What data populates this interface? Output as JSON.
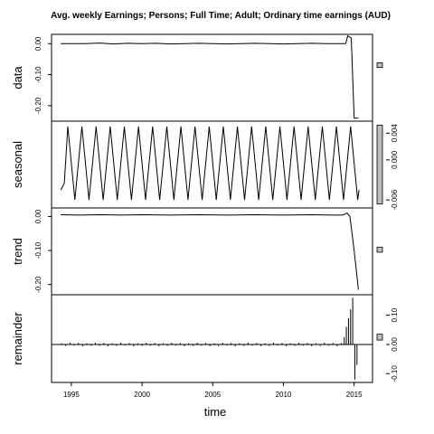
{
  "chart_data": {
    "type": "line",
    "title": "Avg. weekly Earnings; Persons; Full Time; Adult; Ordinary time earnings (AUD)",
    "xlabel": "time",
    "x_ticks": [
      1995,
      2000,
      2005,
      2010,
      2015
    ],
    "x_range": [
      1993.6,
      2016.3
    ],
    "colors": {
      "line": "#000000",
      "range_bar": "#bfbfbf"
    },
    "panels": [
      {
        "name": "data",
        "ylabel": "data",
        "ylim": [
          -0.25,
          0.03
        ],
        "y_ticks": [
          0.0,
          -0.1,
          -0.2
        ],
        "y_tick_labels": [
          "0.00",
          "-0.10",
          "-0.20"
        ],
        "tick_side": "left",
        "range_bar": [
          -0.077,
          -0.062
        ]
      },
      {
        "name": "seasonal",
        "ylabel": "seasonal",
        "ylim": [
          -0.0072,
          0.0058
        ],
        "y_ticks": [
          0.004,
          0.0,
          -0.006
        ],
        "y_tick_labels": [
          "0.004",
          "0.000",
          "-0.006"
        ],
        "tick_side": "right",
        "range_bar": [
          -0.0066,
          0.0052
        ]
      },
      {
        "name": "trend",
        "ylabel": "trend",
        "ylim": [
          -0.23,
          0.025
        ],
        "y_ticks": [
          0.0,
          -0.1,
          -0.2
        ],
        "y_tick_labels": [
          "0.00",
          "-0.10",
          "-0.20"
        ],
        "tick_side": "left",
        "range_bar": [
          -0.105,
          -0.09
        ]
      },
      {
        "name": "remainder",
        "ylabel": "remainder",
        "ylim": [
          -0.13,
          0.17
        ],
        "y_ticks": [
          0.1,
          0.0,
          -0.1
        ],
        "y_tick_labels": [
          "0.10",
          "0.00",
          "-0.10"
        ],
        "tick_side": "right",
        "range_bar": [
          0.015,
          0.035
        ],
        "style": "bars"
      }
    ],
    "series": {
      "data": [
        [
          1994.25,
          0.0
        ],
        [
          1995.0,
          0.0
        ],
        [
          1996.0,
          0.0
        ],
        [
          1997.0,
          0.002
        ],
        [
          1998.0,
          -0.001
        ],
        [
          1999.0,
          0.001
        ],
        [
          2000.0,
          0.0
        ],
        [
          2001.0,
          0.001
        ],
        [
          2002.0,
          -0.001
        ],
        [
          2003.0,
          0.0
        ],
        [
          2004.0,
          0.001
        ],
        [
          2005.0,
          0.0
        ],
        [
          2006.0,
          -0.001
        ],
        [
          2007.0,
          0.0
        ],
        [
          2008.0,
          0.001
        ],
        [
          2009.0,
          0.0
        ],
        [
          2010.0,
          -0.001
        ],
        [
          2011.0,
          0.0
        ],
        [
          2012.0,
          0.001
        ],
        [
          2013.0,
          0.0
        ],
        [
          2014.0,
          0.0
        ],
        [
          2014.4,
          0.0
        ],
        [
          2014.55,
          0.025
        ],
        [
          2014.8,
          0.018
        ],
        [
          2015.0,
          -0.24
        ],
        [
          2015.3,
          -0.24
        ]
      ],
      "seasonal": [
        [
          1994.25,
          -0.0045
        ],
        [
          1994.5,
          -0.0035
        ],
        [
          1994.75,
          0.005
        ],
        [
          1995.25,
          -0.006
        ],
        [
          1995.75,
          0.005
        ],
        [
          1996.25,
          -0.006
        ],
        [
          1996.75,
          0.005
        ],
        [
          1997.25,
          -0.006
        ],
        [
          1997.75,
          0.005
        ],
        [
          1998.25,
          -0.006
        ],
        [
          1998.75,
          0.005
        ],
        [
          1999.25,
          -0.006
        ],
        [
          1999.75,
          0.005
        ],
        [
          2000.25,
          -0.006
        ],
        [
          2000.75,
          0.005
        ],
        [
          2001.25,
          -0.006
        ],
        [
          2001.75,
          0.005
        ],
        [
          2002.25,
          -0.006
        ],
        [
          2002.75,
          0.005
        ],
        [
          2003.25,
          -0.006
        ],
        [
          2003.75,
          0.005
        ],
        [
          2004.25,
          -0.006
        ],
        [
          2004.75,
          0.005
        ],
        [
          2005.25,
          -0.006
        ],
        [
          2005.75,
          0.005
        ],
        [
          2006.25,
          -0.006
        ],
        [
          2006.75,
          0.005
        ],
        [
          2007.25,
          -0.006
        ],
        [
          2007.75,
          0.005
        ],
        [
          2008.25,
          -0.006
        ],
        [
          2008.75,
          0.005
        ],
        [
          2009.25,
          -0.006
        ],
        [
          2009.75,
          0.005
        ],
        [
          2010.25,
          -0.006
        ],
        [
          2010.75,
          0.005
        ],
        [
          2011.25,
          -0.006
        ],
        [
          2011.75,
          0.005
        ],
        [
          2012.25,
          -0.006
        ],
        [
          2012.75,
          0.005
        ],
        [
          2013.25,
          -0.006
        ],
        [
          2013.75,
          0.005
        ],
        [
          2014.25,
          -0.006
        ],
        [
          2014.75,
          0.005
        ],
        [
          2015.25,
          -0.006
        ],
        [
          2015.35,
          -0.0045
        ]
      ],
      "trend": [
        [
          1994.25,
          0.005
        ],
        [
          1995.5,
          0.004
        ],
        [
          1997.0,
          0.005
        ],
        [
          1998.5,
          0.004
        ],
        [
          2000.0,
          0.005
        ],
        [
          2002.0,
          0.004
        ],
        [
          2004.0,
          0.005
        ],
        [
          2006.0,
          0.004
        ],
        [
          2008.0,
          0.005
        ],
        [
          2010.0,
          0.004
        ],
        [
          2012.0,
          0.005
        ],
        [
          2013.5,
          0.004
        ],
        [
          2014.2,
          0.004
        ],
        [
          2014.5,
          0.01
        ],
        [
          2014.7,
          0.0
        ],
        [
          2015.0,
          -0.1
        ],
        [
          2015.3,
          -0.215
        ]
      ],
      "remainder": [
        [
          1994.3,
          0.004
        ],
        [
          1994.6,
          -0.005
        ],
        [
          1994.9,
          0.006
        ],
        [
          1995.2,
          -0.004
        ],
        [
          1995.5,
          0.005
        ],
        [
          1995.8,
          -0.006
        ],
        [
          1996.1,
          0.004
        ],
        [
          1996.4,
          -0.005
        ],
        [
          1996.7,
          0.006
        ],
        [
          1997.0,
          -0.004
        ],
        [
          1997.3,
          0.005
        ],
        [
          1997.6,
          -0.006
        ],
        [
          1997.9,
          0.004
        ],
        [
          1998.2,
          -0.005
        ],
        [
          1998.5,
          0.006
        ],
        [
          1998.8,
          -0.004
        ],
        [
          1999.1,
          0.005
        ],
        [
          1999.4,
          -0.006
        ],
        [
          1999.7,
          0.004
        ],
        [
          2000.0,
          -0.005
        ],
        [
          2000.3,
          0.006
        ],
        [
          2000.6,
          -0.004
        ],
        [
          2000.9,
          0.005
        ],
        [
          2001.2,
          -0.006
        ],
        [
          2001.5,
          0.004
        ],
        [
          2001.8,
          -0.005
        ],
        [
          2002.1,
          0.006
        ],
        [
          2002.4,
          -0.004
        ],
        [
          2002.7,
          0.005
        ],
        [
          2003.0,
          -0.006
        ],
        [
          2003.3,
          0.004
        ],
        [
          2003.6,
          -0.005
        ],
        [
          2003.9,
          0.006
        ],
        [
          2004.2,
          -0.004
        ],
        [
          2004.5,
          0.005
        ],
        [
          2004.8,
          -0.006
        ],
        [
          2005.1,
          0.004
        ],
        [
          2005.4,
          -0.005
        ],
        [
          2005.7,
          0.006
        ],
        [
          2006.0,
          -0.004
        ],
        [
          2006.3,
          0.005
        ],
        [
          2006.6,
          -0.006
        ],
        [
          2006.9,
          0.004
        ],
        [
          2007.2,
          -0.005
        ],
        [
          2007.5,
          0.006
        ],
        [
          2007.8,
          -0.004
        ],
        [
          2008.1,
          0.005
        ],
        [
          2008.4,
          -0.006
        ],
        [
          2008.7,
          0.004
        ],
        [
          2009.0,
          -0.005
        ],
        [
          2009.3,
          0.006
        ],
        [
          2009.6,
          -0.004
        ],
        [
          2009.9,
          0.005
        ],
        [
          2010.2,
          -0.006
        ],
        [
          2010.5,
          0.004
        ],
        [
          2010.8,
          -0.005
        ],
        [
          2011.1,
          0.006
        ],
        [
          2011.4,
          -0.004
        ],
        [
          2011.7,
          0.005
        ],
        [
          2012.0,
          -0.006
        ],
        [
          2012.3,
          0.004
        ],
        [
          2012.6,
          -0.005
        ],
        [
          2012.9,
          0.006
        ],
        [
          2013.2,
          -0.004
        ],
        [
          2013.5,
          0.005
        ],
        [
          2013.8,
          -0.006
        ],
        [
          2014.1,
          0.005
        ],
        [
          2014.3,
          0.025
        ],
        [
          2014.45,
          0.06
        ],
        [
          2014.6,
          0.09
        ],
        [
          2014.75,
          0.12
        ],
        [
          2014.9,
          0.16
        ],
        [
          2015.05,
          -0.12
        ],
        [
          2015.2,
          -0.07
        ]
      ]
    }
  }
}
